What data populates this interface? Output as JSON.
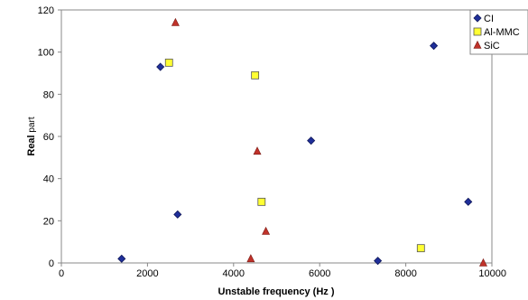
{
  "chart_data": {
    "type": "scatter",
    "title": "",
    "xlabel": "Unstable frequency (Hz )",
    "ylabel_main": "Real",
    "ylabel_suffix": " part",
    "xlim": [
      0,
      10000
    ],
    "ylim": [
      0,
      120
    ],
    "x_ticks": [
      0,
      2000,
      4000,
      6000,
      8000,
      10000
    ],
    "y_ticks": [
      0,
      20,
      40,
      60,
      80,
      100,
      120
    ],
    "grid": false,
    "legend_position": "top-right",
    "series": [
      {
        "name": "CI",
        "marker": "diamond",
        "color": "#1f2f9a",
        "points": [
          [
            1400,
            2
          ],
          [
            2300,
            93
          ],
          [
            2700,
            23
          ],
          [
            5800,
            58
          ],
          [
            7350,
            1
          ],
          [
            8650,
            103
          ],
          [
            9450,
            29
          ]
        ]
      },
      {
        "name": "Al-MMC",
        "marker": "square",
        "color": "#ffff33",
        "points": [
          [
            2500,
            95
          ],
          [
            4500,
            89
          ],
          [
            4650,
            29
          ],
          [
            8350,
            7
          ]
        ]
      },
      {
        "name": "SiC",
        "marker": "triangle",
        "color": "#c0322a",
        "points": [
          [
            2650,
            114
          ],
          [
            4550,
            53
          ],
          [
            4750,
            15
          ],
          [
            4400,
            2
          ],
          [
            9800,
            0
          ]
        ]
      }
    ]
  }
}
